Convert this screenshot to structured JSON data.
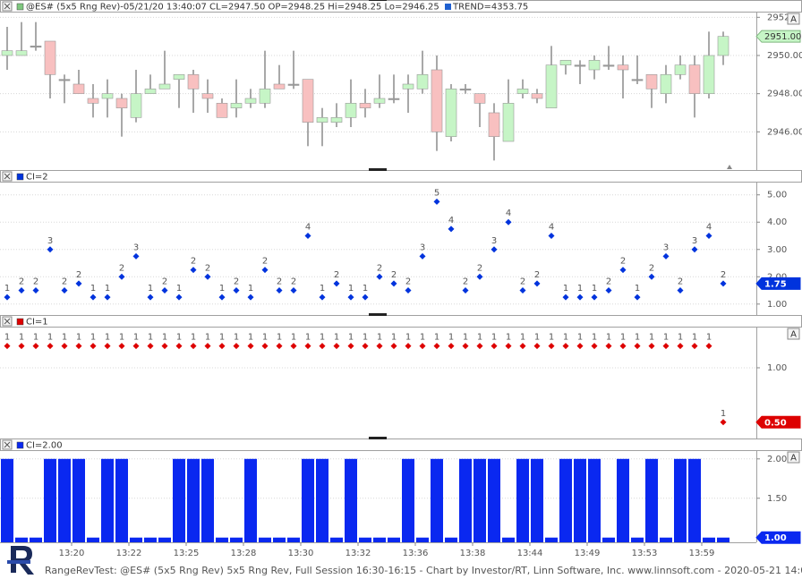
{
  "chart_data": [
    {
      "type": "candlestick",
      "title": "@ES# (5x5 Rng Rev)-05/21/20 13:40:07 CL=2947.50 OP=2948.25 Hi=2948.25 Lo=2946.25",
      "subtitle": "TREND=4353.75",
      "subtitle_color": "#2060d0",
      "color": "#7fc87f",
      "up_color": "#c6f5c6",
      "down_color": "#f8c0c0",
      "categories": [
        null,
        null,
        null,
        null,
        "13:20",
        null,
        null,
        null,
        "13:22",
        null,
        null,
        null,
        "13:25",
        null,
        null,
        null,
        "13:28",
        null,
        null,
        null,
        "13:30",
        null,
        null,
        null,
        "13:32",
        null,
        null,
        null,
        "13:36",
        null,
        null,
        null,
        "13:38",
        null,
        null,
        null,
        "13:44",
        null,
        null,
        null,
        "13:49",
        null,
        null,
        null,
        "13:53",
        null,
        null,
        null,
        "13:59",
        null,
        null
      ],
      "open": [
        2950.0,
        2950.0,
        2950.5,
        2950.75,
        2948.75,
        2948.5,
        2947.75,
        2947.75,
        2947.75,
        2946.75,
        2948.0,
        2948.25,
        2948.75,
        2949.0,
        2948.0,
        2947.5,
        2947.25,
        2947.5,
        2947.5,
        2948.5,
        2948.5,
        2948.75,
        2946.5,
        2946.5,
        2946.75,
        2947.5,
        2947.5,
        2947.75,
        2948.25,
        2948.25,
        2949.25,
        2945.75,
        2948.25,
        2948.0,
        2947.0,
        2945.5,
        2948.0,
        2948.0,
        2947.25,
        2949.5,
        2949.5,
        2949.25,
        2949.5,
        2949.5,
        2948.75,
        2949.0,
        2948.0,
        2949.0,
        2949.5,
        2948.0,
        2950.0
      ],
      "high": [
        2951.5,
        2951.75,
        2951.75,
        2950.75,
        2949.0,
        2949.25,
        2948.5,
        2948.75,
        2948.0,
        2949.25,
        2949.0,
        2950.25,
        2949.0,
        2949.25,
        2948.75,
        2947.75,
        2948.75,
        2948.25,
        2950.25,
        2949.5,
        2950.25,
        2948.75,
        2947.25,
        2947.5,
        2948.75,
        2948.25,
        2949.0,
        2949.0,
        2949.0,
        2950.25,
        2950.0,
        2948.5,
        2948.5,
        2948.0,
        2947.5,
        2948.75,
        2948.75,
        2948.25,
        2950.5,
        2949.75,
        2949.75,
        2950.0,
        2950.5,
        2950.0,
        2950.0,
        2949.0,
        2949.5,
        2950.0,
        2950.0,
        2951.25,
        2951.25
      ],
      "low": [
        2949.25,
        2950.0,
        2950.25,
        2947.75,
        2947.5,
        2948.0,
        2946.75,
        2946.75,
        2945.75,
        2946.5,
        2948.0,
        2948.25,
        2947.25,
        2947.0,
        2947.0,
        2946.75,
        2946.75,
        2947.25,
        2947.25,
        2948.25,
        2948.25,
        2945.25,
        2945.25,
        2946.25,
        2946.25,
        2946.75,
        2947.25,
        2947.5,
        2947.0,
        2948.0,
        2945.0,
        2945.5,
        2948.0,
        2946.25,
        2944.5,
        2945.5,
        2947.75,
        2947.5,
        2947.25,
        2949.0,
        2948.5,
        2948.75,
        2949.25,
        2947.75,
        2948.5,
        2947.25,
        2947.5,
        2948.75,
        2946.75,
        2947.75,
        2949.5
      ],
      "close": [
        2950.25,
        2950.25,
        2950.5,
        2949.0,
        2948.75,
        2948.0,
        2947.5,
        2948.0,
        2947.25,
        2948.0,
        2948.25,
        2948.5,
        2949.0,
        2948.25,
        2947.75,
        2946.75,
        2947.5,
        2947.75,
        2948.25,
        2948.25,
        2948.5,
        2946.5,
        2946.75,
        2946.75,
        2947.5,
        2947.25,
        2947.75,
        2947.75,
        2948.5,
        2949.0,
        2946.0,
        2948.25,
        2948.25,
        2947.5,
        2945.75,
        2947.5,
        2948.25,
        2947.75,
        2949.5,
        2949.75,
        2949.5,
        2949.75,
        2949.5,
        2949.25,
        2948.75,
        2948.25,
        2949.0,
        2949.5,
        2948.0,
        2950.0,
        2951.0
      ],
      "ylim": [
        2944.0,
        2952.25
      ],
      "yticks": [
        {
          "value": 2952,
          "label": "2952."
        },
        {
          "value": 2950,
          "label": "2950.00"
        },
        {
          "value": 2948,
          "label": "2948.00"
        },
        {
          "value": 2946,
          "label": "2946.00"
        }
      ],
      "last_label": {
        "value": 2951.0,
        "label": "2951.00"
      },
      "grid": true,
      "autoscale_button": true
    },
    {
      "type": "dot",
      "title": "CI=2",
      "color": "#0033dd",
      "values": [
        1.25,
        1.5,
        1.5,
        3.0,
        1.5,
        1.75,
        1.25,
        1.25,
        2.0,
        2.75,
        1.25,
        1.5,
        1.25,
        2.25,
        2.0,
        1.25,
        1.5,
        1.25,
        2.25,
        1.5,
        1.5,
        3.5,
        1.25,
        1.75,
        1.25,
        1.25,
        2.0,
        1.75,
        1.5,
        2.75,
        4.75,
        3.75,
        1.5,
        2.0,
        3.0,
        4.0,
        1.5,
        1.75,
        3.5,
        1.25,
        1.25,
        1.25,
        1.5,
        2.25,
        1.25,
        2.0,
        2.75,
        1.5,
        3.0,
        3.5,
        1.75
      ],
      "value_labels": [
        "1",
        "2",
        "2",
        "3",
        "2",
        "2",
        "1",
        "1",
        "2",
        "3",
        "1",
        "2",
        "1",
        "2",
        "2",
        "1",
        "2",
        "1",
        "2",
        "2",
        "2",
        "4",
        "1",
        "2",
        "1",
        "1",
        "2",
        "2",
        "2",
        "3",
        "5",
        "4",
        "2",
        "2",
        "3",
        "4",
        "2",
        "2",
        "4",
        "1",
        "1",
        "1",
        "2",
        "2",
        "1",
        "2",
        "3",
        "2",
        "3",
        "4",
        "2"
      ],
      "ylim": [
        0.6,
        5.45
      ],
      "yticks": [
        {
          "value": 5,
          "label": "5.00"
        },
        {
          "value": 4,
          "label": "4.00"
        },
        {
          "value": 3,
          "label": "3.00"
        },
        {
          "value": 2,
          "label": "2.00"
        },
        {
          "value": 1,
          "label": "1.00"
        }
      ],
      "last_label": {
        "value": 1.75,
        "label": "1.75"
      },
      "grid": true,
      "autoscale_button": false
    },
    {
      "type": "dot",
      "title": "CI=1",
      "color": "#dd0000",
      "values": [
        1.2,
        1.2,
        1.2,
        1.2,
        1.2,
        1.2,
        1.2,
        1.2,
        1.2,
        1.2,
        1.2,
        1.2,
        1.2,
        1.2,
        1.2,
        1.2,
        1.2,
        1.2,
        1.2,
        1.2,
        1.2,
        1.2,
        1.2,
        1.2,
        1.2,
        1.2,
        1.2,
        1.2,
        1.2,
        1.2,
        1.2,
        1.2,
        1.2,
        1.2,
        1.2,
        1.2,
        1.2,
        1.2,
        1.2,
        1.2,
        1.2,
        1.2,
        1.2,
        1.2,
        1.2,
        1.2,
        1.2,
        1.2,
        1.2,
        1.2,
        0.5
      ],
      "value_labels": [
        "1",
        "1",
        "1",
        "1",
        "1",
        "1",
        "1",
        "1",
        "1",
        "1",
        "1",
        "1",
        "1",
        "1",
        "1",
        "1",
        "1",
        "1",
        "1",
        "1",
        "1",
        "1",
        "1",
        "1",
        "1",
        "1",
        "1",
        "1",
        "1",
        "1",
        "1",
        "1",
        "1",
        "1",
        "1",
        "1",
        "1",
        "1",
        "1",
        "1",
        "1",
        "1",
        "1",
        "1",
        "1",
        "1",
        "1",
        "1",
        "1",
        "1",
        "1"
      ],
      "ylim": [
        0.35,
        1.37
      ],
      "yticks": [
        {
          "value": 1,
          "label": "1.00"
        }
      ],
      "last_label": {
        "value": 0.5,
        "label": "0.50"
      },
      "grid": true,
      "autoscale_button": true
    },
    {
      "type": "bar",
      "title": "CI=2.00",
      "color": "#0a28f0",
      "values": [
        2,
        1,
        1,
        2,
        2,
        2,
        1,
        2,
        2,
        1,
        1,
        1,
        2,
        2,
        2,
        1,
        1,
        2,
        1,
        1,
        1,
        2,
        2,
        1,
        2,
        1,
        1,
        1,
        2,
        1,
        2,
        1,
        2,
        2,
        2,
        1,
        2,
        2,
        1,
        2,
        2,
        2,
        1,
        2,
        1,
        2,
        1,
        2,
        2,
        1,
        1
      ],
      "ylim": [
        0.94,
        2.1
      ],
      "yticks": [
        {
          "value": 2,
          "label": "2.00"
        },
        {
          "value": 1.5,
          "label": "1.50"
        }
      ],
      "last_label": {
        "value": 1,
        "label": "1.00"
      },
      "grid": true,
      "autoscale_button": true
    }
  ],
  "button_label": "A",
  "footer": "RangeRevTest: @ES# (5x5 Rng Rev) 5x5 Rng Rev, Full Session 16:30-16:15 - Chart by Investor/RT, Linn Software, Inc. www.linnsoft.com - 2020-05-21 14:03:03"
}
